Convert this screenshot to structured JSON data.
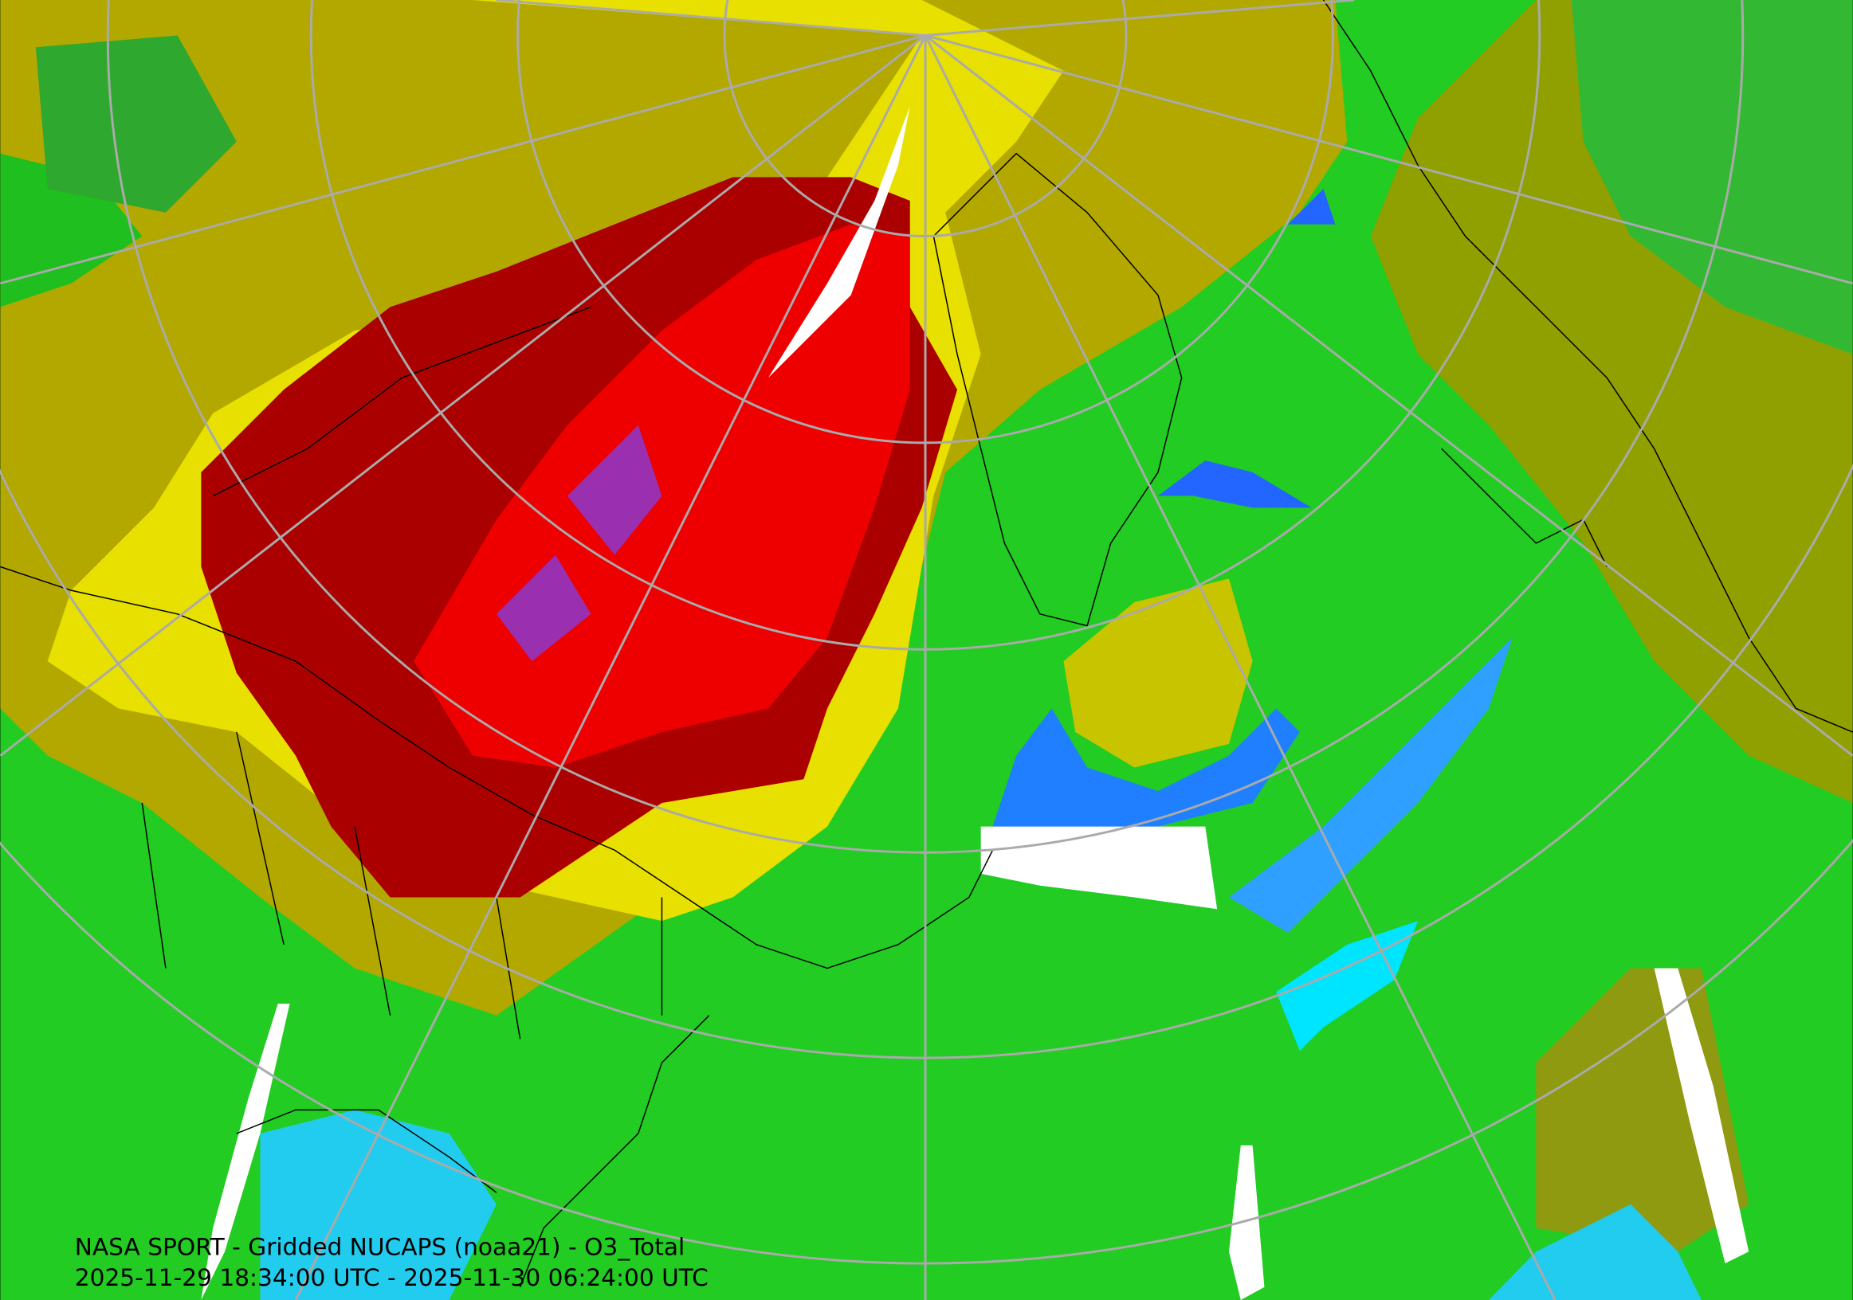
{
  "caption": {
    "line1": "NASA SPORT - Gridded NUCAPS (noaa21) - O3_Total",
    "line2": "2025-11-29 18:34:00 UTC - 2025-11-30 06:24:00 UTC"
  }
}
